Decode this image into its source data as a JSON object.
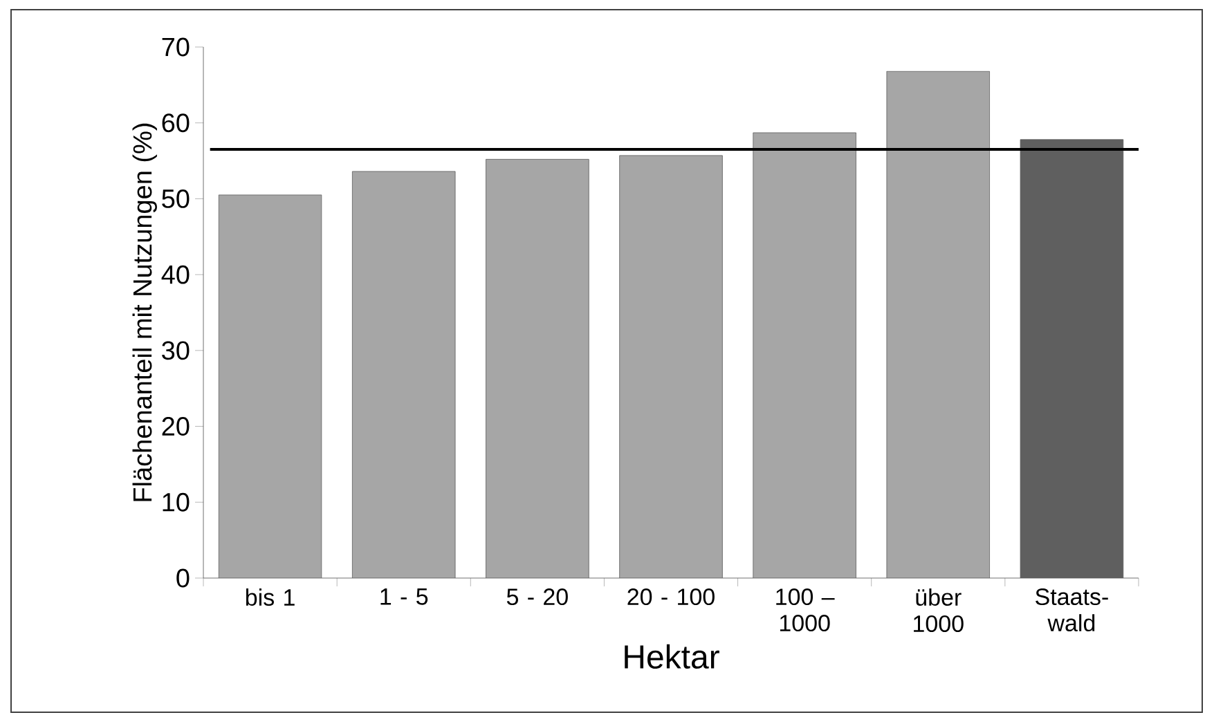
{
  "chart_data": {
    "type": "bar",
    "xlabel": "Hektar",
    "ylabel": "Flächenanteil mit Nutzungen (%)",
    "categories": [
      "bis 1",
      "1 - 5",
      "5 - 20",
      "20 - 100",
      "100 – 1000",
      "über 1000",
      "Staats-wald"
    ],
    "values": [
      50.5,
      53.6,
      55.2,
      55.7,
      58.7,
      66.8,
      57.8
    ],
    "colors": [
      "#a6a6a6",
      "#a6a6a6",
      "#a6a6a6",
      "#a6a6a6",
      "#a6a6a6",
      "#a6a6a6",
      "#5f5f5f"
    ],
    "ylim": [
      0,
      70
    ],
    "yticks": [
      0,
      10,
      20,
      30,
      40,
      50,
      60,
      70
    ],
    "ref_lines": [
      {
        "axis": "y",
        "value": 56.5,
        "color": "#000000"
      }
    ],
    "grid": false
  }
}
